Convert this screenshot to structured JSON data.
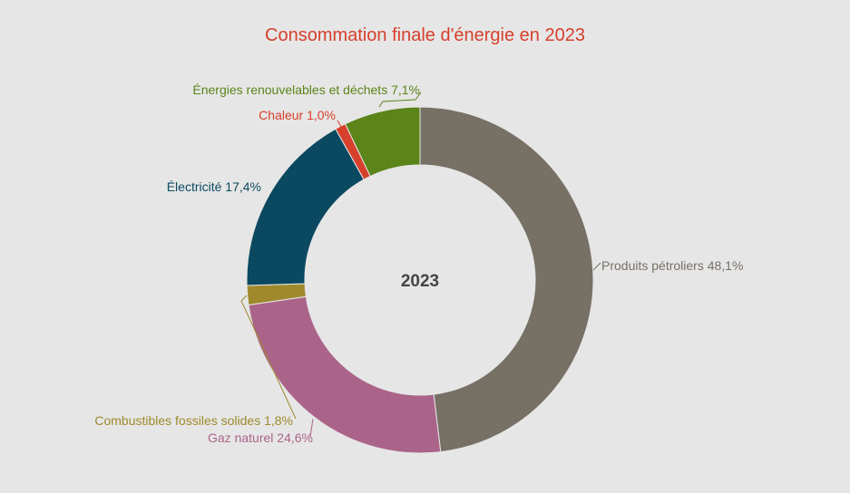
{
  "chart_data": {
    "type": "pie",
    "variant": "donut",
    "title": "Consommation finale d'énergie en 2023",
    "center_label": "2023",
    "unit": "%",
    "slices": [
      {
        "key": "produits-petroliers",
        "label": "Produits pétroliers",
        "value": 48.1,
        "value_text": "48,1%",
        "color": "#777065"
      },
      {
        "key": "gaz-naturel",
        "label": "Gaz naturel",
        "value": 24.6,
        "value_text": "24,6%",
        "color": "#ab6489"
      },
      {
        "key": "combustibles-fossiles-solides",
        "label": "Combustibles fossiles solides",
        "value": 1.8,
        "value_text": "1,8%",
        "color": "#9e8a2c"
      },
      {
        "key": "electricite",
        "label": "Électricité",
        "value": 17.4,
        "value_text": "17,4%",
        "color": "#0a4960"
      },
      {
        "key": "chaleur",
        "label": "Chaleur",
        "value": 1.0,
        "value_text": "1,0%",
        "color": "#d6402c"
      },
      {
        "key": "energies-renouvelables",
        "label": "Énergies renouvelables et déchets",
        "value": 7.1,
        "value_text": "7,1%",
        "color": "#5b8419"
      }
    ],
    "title_color": "#d6402c",
    "background": "#e6e6e6"
  }
}
